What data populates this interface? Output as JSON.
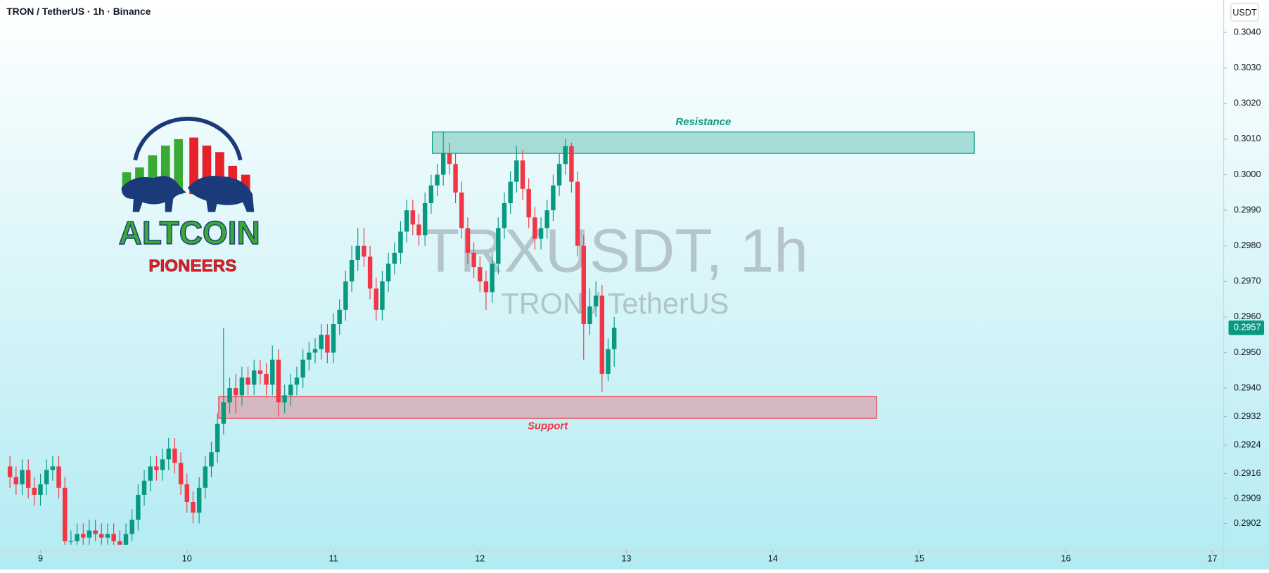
{
  "header": {
    "title": "TRON / TetherUS · 1h · Binance",
    "currency": "USDT"
  },
  "logo": {
    "title": "ALTCOIN",
    "subtitle": "PIONEERS"
  },
  "chart_data": {
    "type": "candlestick",
    "watermark": "TRXUSDT, 1h",
    "watermark_subtitle": "TRON / TetherUS",
    "up_color": "#089981",
    "down_color": "#f23645",
    "x": [
      211,
      212,
      213,
      214,
      215,
      216,
      217,
      218,
      219,
      220,
      221,
      222,
      223,
      224,
      225,
      226,
      227,
      228,
      229,
      230,
      231,
      232,
      233,
      234,
      235,
      236,
      237,
      238,
      239,
      240,
      241,
      242,
      243,
      244,
      245,
      246,
      247,
      248,
      249,
      250,
      251,
      252,
      253,
      254,
      255,
      256,
      257,
      258,
      259,
      260,
      261,
      262,
      263,
      264,
      265,
      266,
      267,
      268,
      269,
      270,
      271,
      272,
      273,
      274,
      275,
      276,
      277,
      278,
      279,
      280,
      281,
      282,
      283,
      284,
      285,
      286,
      287,
      288,
      289,
      290,
      291,
      292,
      293,
      294,
      295,
      296,
      297,
      298,
      299,
      300,
      301,
      302,
      303,
      304,
      305,
      306,
      307,
      308,
      309,
      310
    ],
    "open": [
      0.2918,
      0.2915,
      0.2913,
      0.2917,
      0.2912,
      0.291,
      0.2913,
      0.2917,
      0.2918,
      0.2912,
      0.2897,
      0.2897,
      0.2899,
      0.2898,
      0.29,
      0.2899,
      0.2898,
      0.2899,
      0.2897,
      0.2896,
      0.2899,
      0.2903,
      0.291,
      0.2914,
      0.2918,
      0.2917,
      0.292,
      0.2923,
      0.2919,
      0.2913,
      0.2908,
      0.2905,
      0.2912,
      0.2918,
      0.2922,
      0.293,
      0.2936,
      0.294,
      0.2938,
      0.2943,
      0.2941,
      0.2945,
      0.2944,
      0.2941,
      0.2948,
      0.2936,
      0.2938,
      0.2941,
      0.2943,
      0.2948,
      0.295,
      0.2951,
      0.2955,
      0.295,
      0.2958,
      0.2962,
      0.297,
      0.2976,
      0.298,
      0.2977,
      0.2968,
      0.2962,
      0.297,
      0.2975,
      0.2978,
      0.2984,
      0.299,
      0.2986,
      0.2983,
      0.2992,
      0.2997,
      0.3,
      0.3006,
      0.3003,
      0.2995,
      0.2985,
      0.2978,
      0.2974,
      0.297,
      0.2967,
      0.2975,
      0.2985,
      0.2992,
      0.2998,
      0.3004,
      0.2996,
      0.2988,
      0.2982,
      0.2985,
      0.299,
      0.2997,
      0.3003,
      0.3008,
      0.2998,
      0.298,
      0.2958,
      0.2963,
      0.2966,
      0.2944,
      0.2951
    ],
    "high": [
      0.2921,
      0.2918,
      0.292,
      0.292,
      0.2915,
      0.2916,
      0.292,
      0.2921,
      0.2921,
      0.2915,
      0.29,
      0.2902,
      0.2902,
      0.2903,
      0.2903,
      0.2902,
      0.2902,
      0.2902,
      0.29,
      0.2902,
      0.2906,
      0.2913,
      0.2917,
      0.2921,
      0.2921,
      0.2923,
      0.2926,
      0.2926,
      0.2922,
      0.2916,
      0.2911,
      0.2915,
      0.2921,
      0.2925,
      0.2933,
      0.2957,
      0.2943,
      0.2944,
      0.2946,
      0.2946,
      0.2948,
      0.2948,
      0.2947,
      0.2952,
      0.2951,
      0.2941,
      0.2944,
      0.2946,
      0.2951,
      0.2953,
      0.2954,
      0.2958,
      0.2958,
      0.2961,
      0.2965,
      0.2973,
      0.298,
      0.2985,
      0.2985,
      0.298,
      0.2971,
      0.2973,
      0.2978,
      0.2981,
      0.2987,
      0.2993,
      0.2993,
      0.2989,
      0.2995,
      0.3,
      0.3003,
      0.3012,
      0.3009,
      0.3006,
      0.2998,
      0.2988,
      0.2981,
      0.2977,
      0.2973,
      0.2978,
      0.2988,
      0.2995,
      0.3001,
      0.3008,
      0.3007,
      0.2999,
      0.2991,
      0.2988,
      0.2993,
      0.3,
      0.3006,
      0.301,
      0.3009,
      0.3001,
      0.2983,
      0.2968,
      0.297,
      0.2969,
      0.2954,
      0.296
    ],
    "low": [
      0.2912,
      0.291,
      0.291,
      0.2909,
      0.2907,
      0.2907,
      0.291,
      0.2914,
      0.2909,
      0.2896,
      0.2896,
      0.2896,
      0.2896,
      0.2896,
      0.2897,
      0.2896,
      0.2896,
      0.2896,
      0.2896,
      0.2896,
      0.2897,
      0.29,
      0.2907,
      0.2911,
      0.2914,
      0.2914,
      0.2917,
      0.2916,
      0.291,
      0.2905,
      0.2902,
      0.2902,
      0.2909,
      0.2915,
      0.2919,
      0.2927,
      0.2933,
      0.2933,
      0.2935,
      0.2938,
      0.2938,
      0.2941,
      0.2938,
      0.2938,
      0.2932,
      0.2933,
      0.2935,
      0.2938,
      0.294,
      0.2945,
      0.2947,
      0.2948,
      0.2947,
      0.2947,
      0.2955,
      0.2959,
      0.2967,
      0.2973,
      0.2974,
      0.2965,
      0.2959,
      0.2959,
      0.2967,
      0.2972,
      0.2975,
      0.2981,
      0.2983,
      0.298,
      0.298,
      0.2989,
      0.2994,
      0.2997,
      0.3,
      0.2992,
      0.2982,
      0.2975,
      0.2971,
      0.2967,
      0.2962,
      0.2964,
      0.2972,
      0.2982,
      0.2989,
      0.2995,
      0.2993,
      0.2985,
      0.2979,
      0.2979,
      0.2982,
      0.2987,
      0.2994,
      0.3,
      0.2995,
      0.2977,
      0.2948,
      0.2955,
      0.296,
      0.2939,
      0.2942,
      0.2946
    ],
    "close": [
      0.2915,
      0.2913,
      0.2917,
      0.2912,
      0.291,
      0.2913,
      0.2917,
      0.2918,
      0.2912,
      0.2897,
      0.2897,
      0.2899,
      0.2898,
      0.29,
      0.2899,
      0.2898,
      0.2899,
      0.2897,
      0.2896,
      0.2899,
      0.2903,
      0.291,
      0.2914,
      0.2918,
      0.2917,
      0.292,
      0.2923,
      0.2919,
      0.2913,
      0.2908,
      0.2905,
      0.2912,
      0.2918,
      0.2922,
      0.293,
      0.2936,
      0.294,
      0.2938,
      0.2943,
      0.2941,
      0.2945,
      0.2944,
      0.2941,
      0.2948,
      0.2936,
      0.2938,
      0.2941,
      0.2943,
      0.2948,
      0.295,
      0.2951,
      0.2955,
      0.295,
      0.2958,
      0.2962,
      0.297,
      0.2976,
      0.298,
      0.2977,
      0.2968,
      0.2962,
      0.297,
      0.2975,
      0.2978,
      0.2984,
      0.299,
      0.2986,
      0.2983,
      0.2992,
      0.2997,
      0.3,
      0.3006,
      0.3003,
      0.2995,
      0.2985,
      0.2978,
      0.2974,
      0.297,
      0.2967,
      0.2975,
      0.2985,
      0.2992,
      0.2998,
      0.3004,
      0.2996,
      0.2988,
      0.2982,
      0.2985,
      0.299,
      0.2997,
      0.3003,
      0.3008,
      0.2998,
      0.298,
      0.2958,
      0.2963,
      0.2966,
      0.2944,
      0.2951,
      0.2957
    ],
    "xlim": [
      209.37,
      409.85
    ],
    "ylim": [
      0.28945,
      0.30491
    ],
    "xticks": [
      {
        "value": 216,
        "label": "9"
      },
      {
        "value": 240,
        "label": "10"
      },
      {
        "value": 264,
        "label": "11"
      },
      {
        "value": 288,
        "label": "12"
      },
      {
        "value": 312,
        "label": "13"
      },
      {
        "value": 336,
        "label": "14"
      },
      {
        "value": 360,
        "label": "15"
      },
      {
        "value": 384,
        "label": "16"
      },
      {
        "value": 408,
        "label": "17"
      }
    ],
    "yticks": [
      {
        "value": 0.304,
        "label": "0.3040"
      },
      {
        "value": 0.303,
        "label": "0.3030"
      },
      {
        "value": 0.302,
        "label": "0.3020"
      },
      {
        "value": 0.301,
        "label": "0.3010"
      },
      {
        "value": 0.3,
        "label": "0.3000"
      },
      {
        "value": 0.299,
        "label": "0.2990"
      },
      {
        "value": 0.298,
        "label": "0.2980"
      },
      {
        "value": 0.297,
        "label": "0.2970"
      },
      {
        "value": 0.296,
        "label": "0.2960"
      },
      {
        "value": 0.295,
        "label": "0.2950"
      },
      {
        "value": 0.294,
        "label": "0.2940"
      },
      0.2932,
      0.2924,
      0.2916,
      0.2909,
      0.2902
    ],
    "last_price": 0.2957,
    "zones": [
      {
        "label": "Resistance",
        "color": "#089981",
        "label_position": "above",
        "x": [
          280.2,
          369.0
        ],
        "y": [
          0.3006,
          0.3012
        ]
      },
      {
        "label": "Support",
        "color": "#f23645",
        "label_position": "below",
        "x": [
          245.2,
          353.0
        ],
        "y": [
          0.29315,
          0.29377
        ]
      }
    ]
  }
}
